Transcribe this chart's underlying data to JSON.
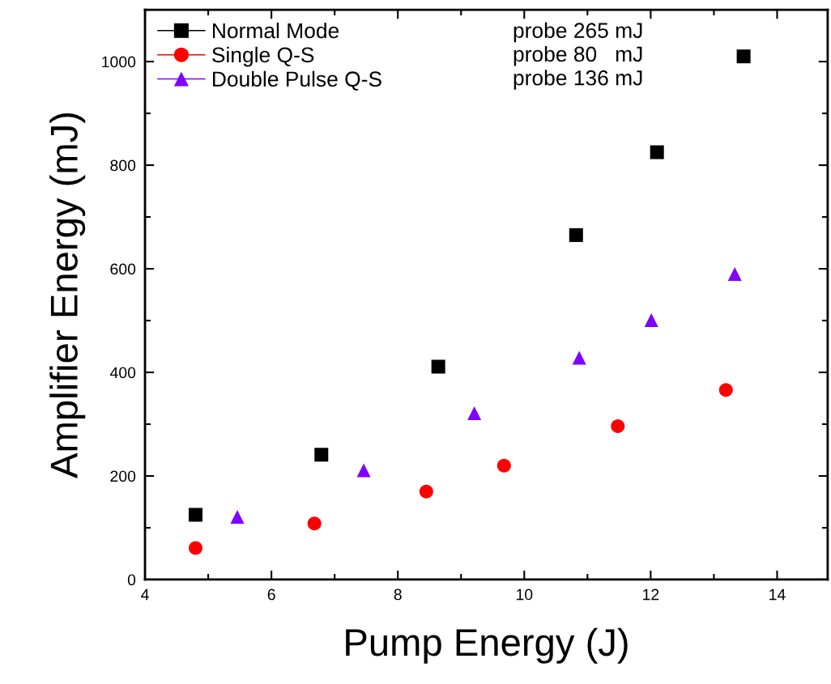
{
  "chart_data": {
    "type": "scatter",
    "xlabel": "Pump Energy (J)",
    "ylabel": "Amplifier Energy (mJ)",
    "xlim": [
      4,
      14.8
    ],
    "xticks": [
      4,
      6,
      8,
      10,
      12,
      14
    ],
    "ylim": [
      0,
      1100
    ],
    "yticks": [
      0,
      200,
      400,
      600,
      800,
      1000
    ],
    "grid": false,
    "legend": "top left",
    "series": [
      {
        "name": "Normal Mode",
        "color": "#000000",
        "marker": "square",
        "x": [
          4.8,
          6.79,
          8.64,
          10.82,
          12.1,
          13.47
        ],
        "values": [
          125,
          241,
          411,
          665,
          825,
          1010
        ]
      },
      {
        "name": "Single Q-S",
        "color": "#ff0000",
        "marker": "circle",
        "x": [
          4.8,
          6.68,
          8.45,
          9.68,
          11.48,
          13.19
        ],
        "values": [
          61,
          108,
          170,
          220,
          296,
          366
        ]
      },
      {
        "name": "Double Pulse Q-S",
        "color": "#8000ff",
        "marker": "triangle",
        "x": [
          5.46,
          7.46,
          9.21,
          10.87,
          12.01,
          13.33
        ],
        "values": [
          121,
          211,
          321,
          428,
          501,
          590
        ]
      }
    ],
    "annotations": [
      "probe 265 mJ",
      "probe 80   mJ",
      "probe 136 mJ"
    ]
  }
}
